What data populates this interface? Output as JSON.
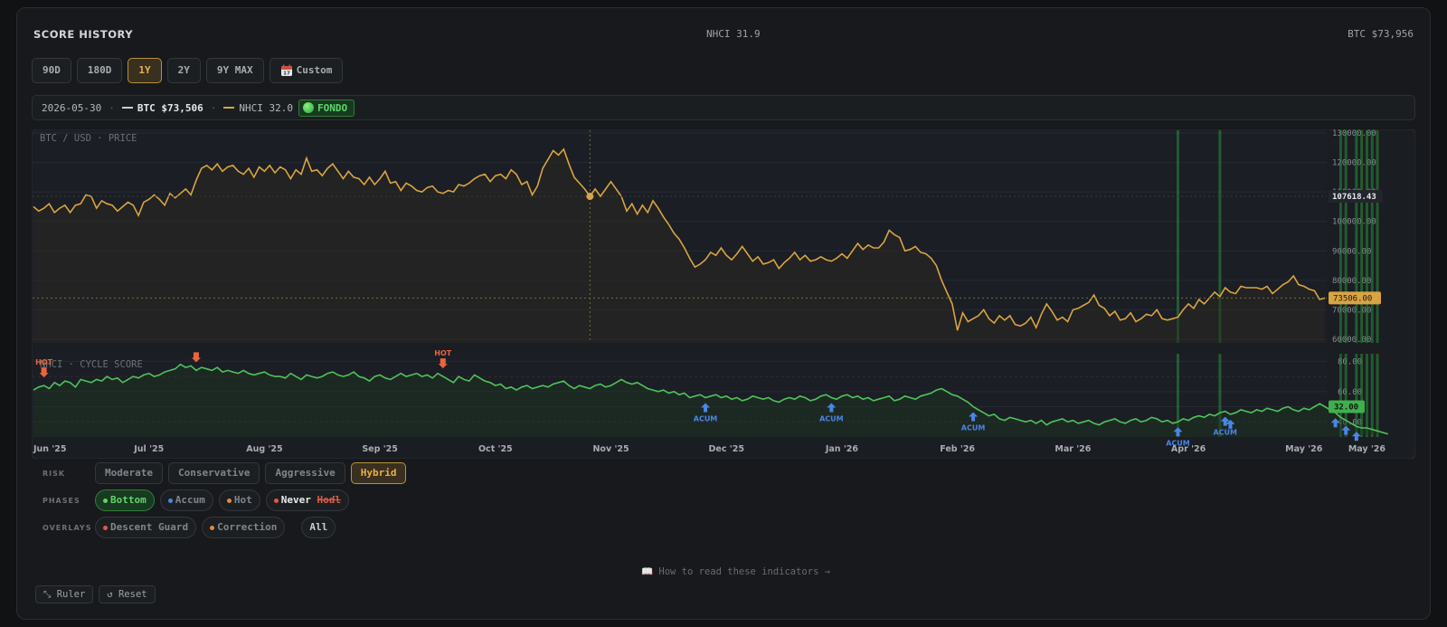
{
  "header": {
    "title": "SCORE HISTORY",
    "nhci": "NHCI 31.9",
    "btc": "BTC $73,956"
  },
  "ranges": [
    {
      "label": "90D",
      "active": false
    },
    {
      "label": "180D",
      "active": false
    },
    {
      "label": "1Y",
      "active": true
    },
    {
      "label": "2Y",
      "active": false
    },
    {
      "label": "9Y MAX",
      "active": false
    },
    {
      "label": "Custom",
      "active": false
    }
  ],
  "calendar_icon": "calendar-icon",
  "infobar": {
    "date": "2026-05-30",
    "btc": "BTC $73,506",
    "nhci": "NHCI 32.0",
    "phase": "FONDO"
  },
  "colors": {
    "btc_line": "#d9a441",
    "nhci_line": "#4fc25a",
    "bottom_band": "#2e8c3c",
    "hot": "#e8663c",
    "accum": "#4a86e8",
    "accent": "#e8b04a"
  },
  "chart_data": [
    {
      "type": "line",
      "title": "BTC / USD · PRICE",
      "series": [
        {
          "values": [
            105000,
            103500,
            104500,
            106000,
            103000,
            104500,
            105500,
            103000,
            105500,
            106000,
            109000,
            108500,
            104500,
            107000,
            106000,
            105500,
            103500,
            105000,
            106500,
            105500,
            102000,
            106500,
            107500,
            109000,
            107500,
            105500,
            109500,
            108000,
            109500,
            111000,
            109000,
            114000,
            118000,
            119000,
            117500,
            119500,
            117000,
            118500,
            119000,
            117000,
            116000,
            118000,
            115000,
            118500,
            117000,
            119000,
            116500,
            118500,
            117500,
            114500,
            117500,
            116000,
            121500,
            117000,
            117500,
            115500,
            118000,
            119500,
            117000,
            114500,
            117000,
            115000,
            114500,
            112500,
            115000,
            112500,
            114500,
            117000,
            113000,
            113500,
            110500,
            113000,
            112000,
            110500,
            110000,
            111500,
            112000,
            110000,
            109500,
            110500,
            110000,
            112500,
            112000,
            113000,
            114500,
            115500,
            116000,
            113500,
            115500,
            116000,
            114500,
            117500,
            116000,
            112500,
            113500,
            109000,
            112000,
            118000,
            121000,
            124000,
            122500,
            124500,
            119500,
            115000,
            113000,
            111000,
            108500,
            111000,
            108500,
            111000,
            113500,
            111000,
            108500,
            103500,
            106000,
            102500,
            105500,
            103000,
            107000,
            104500,
            101500,
            99000,
            96000,
            94000,
            91000,
            87500,
            84500,
            85500,
            87000,
            89500,
            88500,
            91000,
            88500,
            87000,
            89000,
            91500,
            89000,
            86500,
            88000,
            85500,
            86000,
            87000,
            84000,
            86000,
            87500,
            89500,
            87000,
            88500,
            86500,
            87000,
            88000,
            87000,
            86500,
            87500,
            89000,
            87500,
            90000,
            92500,
            90500,
            92000,
            91000,
            91000,
            93000,
            97000,
            95500,
            94500,
            90000,
            90500,
            91500,
            89500,
            89000,
            87500,
            85000,
            80000,
            76000,
            72000,
            63000,
            69000,
            66000,
            67000,
            68000,
            70000,
            67000,
            65500,
            68000,
            66500,
            68000,
            65000,
            64500,
            65500,
            67500,
            64000,
            68500,
            72000,
            69500,
            66500,
            67500,
            66000,
            70000,
            70500,
            71500,
            72500,
            75000,
            71500,
            70500,
            68000,
            69500,
            66500,
            67000,
            69000,
            66000,
            67000,
            68500,
            68000,
            70000,
            67000,
            66500,
            67000,
            67500,
            70000,
            72000,
            70500,
            73500,
            72000,
            74000,
            76000,
            74500,
            77500,
            76000,
            75500,
            78000,
            77500,
            77500,
            77500,
            77000,
            78000,
            75500,
            77000,
            78500,
            79500,
            81500,
            78500,
            78000,
            77000,
            76500,
            73500,
            74000
          ],
          "points": 260
        },
        {
          "values": [
            61,
            63,
            64,
            62,
            66,
            64,
            67,
            66,
            63,
            68,
            67,
            66,
            68,
            67,
            70,
            68,
            69,
            66,
            68,
            70,
            69,
            71,
            72,
            70,
            71,
            73,
            74,
            75,
            78,
            76,
            77,
            74,
            76,
            75,
            74,
            76,
            73,
            74,
            73,
            72,
            74,
            72,
            71,
            72,
            73,
            71,
            70,
            70,
            69,
            72,
            70,
            68,
            71,
            70,
            69,
            70,
            72,
            73,
            71,
            70,
            71,
            73,
            70,
            69,
            67,
            70,
            71,
            69,
            68,
            70,
            72,
            70,
            71,
            72,
            70,
            71,
            69,
            72,
            70,
            68,
            66,
            70,
            68,
            67,
            71,
            69,
            67,
            66,
            64,
            65,
            62,
            63,
            61,
            63,
            64,
            62,
            63,
            64,
            63,
            65,
            66,
            67,
            64,
            62,
            64,
            63,
            62,
            64,
            65,
            63,
            64,
            66,
            68,
            66,
            65,
            66,
            64,
            62,
            61,
            60,
            61,
            59,
            60,
            58,
            59,
            56,
            57,
            58,
            56,
            57,
            58,
            56,
            57,
            55,
            56,
            54,
            55,
            57,
            56,
            55,
            56,
            54,
            53,
            55,
            56,
            55,
            57,
            56,
            54,
            55,
            57,
            58,
            56,
            55,
            57,
            58,
            56,
            57,
            55,
            56,
            54,
            55,
            56,
            57,
            54,
            55,
            57,
            56,
            55,
            57,
            58,
            59,
            61,
            62,
            60,
            58,
            57,
            55,
            53,
            50,
            48,
            46,
            44,
            45,
            42,
            41,
            43,
            42,
            41,
            40,
            41,
            39,
            41,
            38,
            40,
            41,
            42,
            40,
            41,
            39,
            40,
            41,
            39,
            38,
            40,
            41,
            42,
            40,
            39,
            41,
            42,
            40,
            41,
            43,
            42,
            40,
            41,
            39,
            40,
            42,
            41,
            43,
            44,
            43,
            45,
            44,
            46,
            47,
            45,
            46,
            48,
            47,
            46,
            48,
            47,
            49,
            48,
            47,
            49,
            50,
            48,
            47,
            49,
            48,
            50,
            52,
            50,
            48,
            46,
            43,
            41,
            39,
            37,
            36,
            36,
            35,
            34,
            33,
            32
          ],
          "points": 260
        }
      ],
      "xlabels": [
        "Jun '25",
        "Jul '25",
        "Aug '25",
        "Sep '25",
        "Oct '25",
        "Nov '25",
        "Dec '25",
        "Jan '26",
        "Feb '26",
        "Mar '26",
        "Apr '26",
        "May '26",
        "May '26"
      ],
      "price_ticks": [
        "130000.00",
        "120000.00",
        "110000.00",
        "100000.00",
        "90000.00",
        "80000.00",
        "70000.00",
        "60000.00"
      ],
      "price_ylim": [
        60000,
        130000
      ],
      "cursor_price": "107618.43",
      "last_price": "73506.00",
      "score_title": "NHCI · CYCLE SCORE",
      "score_ticks": [
        "80.00",
        "60.00",
        "40.00"
      ],
      "score_ylim": [
        30,
        85
      ],
      "last_score": "32.00",
      "hot_label": "HOT",
      "accum_label": "ACUM",
      "grid": true
    }
  ],
  "risk": {
    "label": "RISK",
    "options": [
      "Moderate",
      "Conservative",
      "Aggressive",
      "Hybrid"
    ],
    "active": "Hybrid"
  },
  "phases": {
    "label": "PHASES",
    "bottom": "Bottom",
    "accum": "Accum",
    "hot": "Hot",
    "never": "Never",
    "hedl": "Hodl"
  },
  "overlays": {
    "label": "OVERLAYS",
    "descent": "Descent Guard",
    "correction": "Correction",
    "all": "All"
  },
  "howto": "📖 How to read these indicators →",
  "tools": {
    "ruler": "⤡ Ruler",
    "reset": "↺ Reset"
  }
}
